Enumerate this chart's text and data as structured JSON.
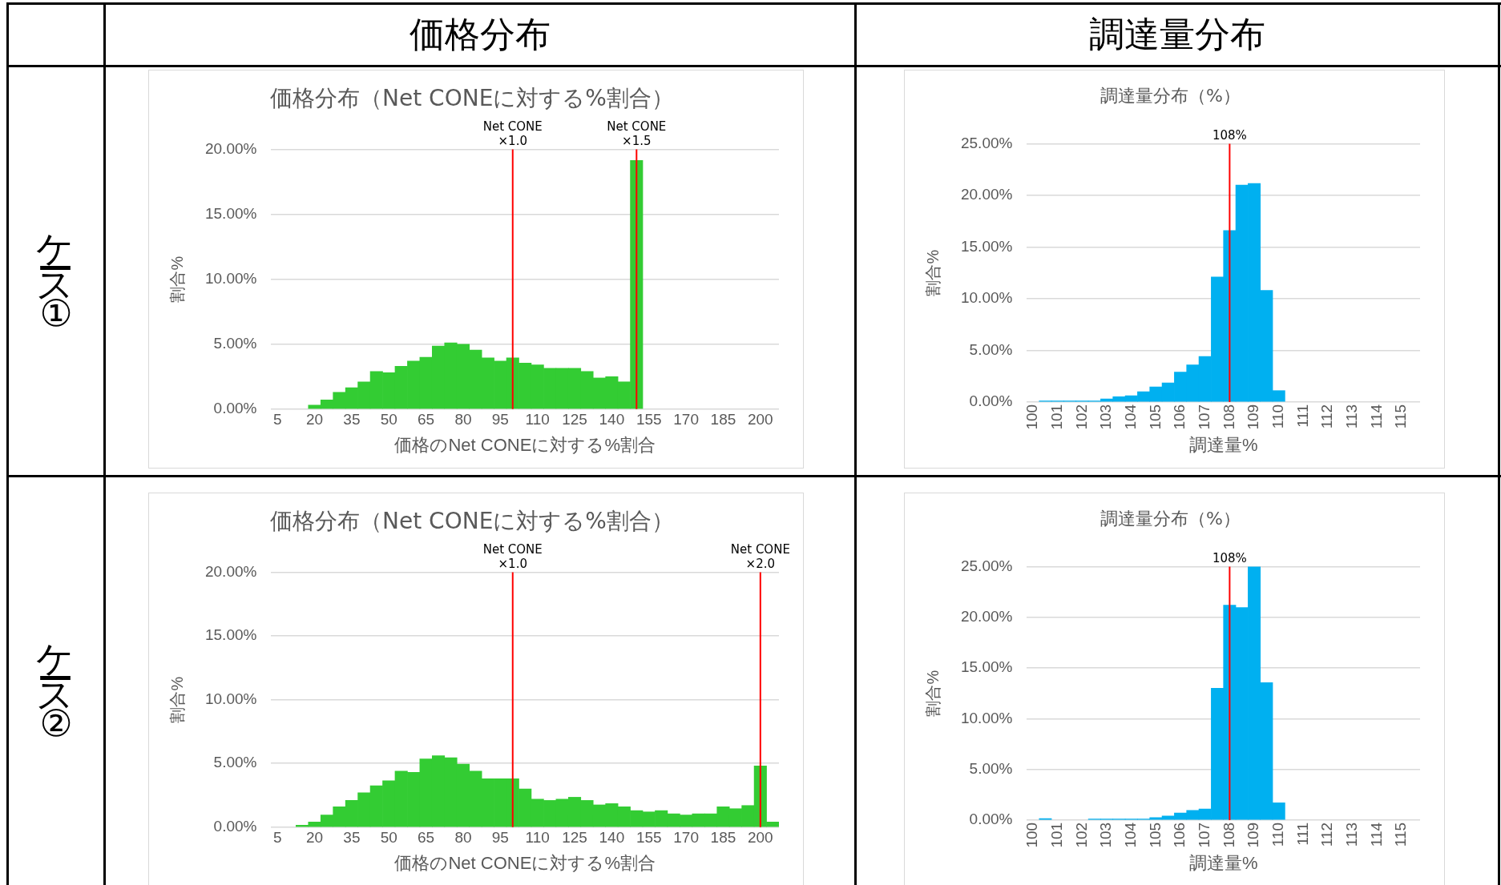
{
  "chart_data": [
    {
      "type": "bar",
      "title": "価格分布（Net CONEに対する%割合）",
      "xlabel": "価格のNet CONEに対する%割合",
      "ylabel": "割合%",
      "annotations": [
        "価格分布",
        "ケース①"
      ],
      "x": [
        20,
        25,
        30,
        35,
        40,
        45,
        50,
        55,
        60,
        65,
        70,
        75,
        80,
        85,
        90,
        95,
        100,
        105,
        110,
        115,
        120,
        125,
        130,
        135,
        140,
        145,
        150
      ],
      "values": [
        0.3,
        0.7,
        1.3,
        1.65,
        2.1,
        2.9,
        2.8,
        3.3,
        3.7,
        4.0,
        4.85,
        5.1,
        5.0,
        4.55,
        3.95,
        3.7,
        3.95,
        3.55,
        3.4,
        3.15,
        3.15,
        3.15,
        2.9,
        2.4,
        2.5,
        2.1,
        19.15
      ],
      "color": "#33cc33",
      "xlim": [
        2.5,
        207.5
      ],
      "xticks": [
        5,
        20,
        35,
        50,
        65,
        80,
        95,
        110,
        125,
        140,
        155,
        170,
        185,
        200
      ],
      "ylim": [
        0,
        20
      ],
      "yticks": [
        {
          "value": 0,
          "label": "0.00%"
        },
        {
          "value": 5,
          "label": "5.00%"
        },
        {
          "value": 10,
          "label": "10.00%"
        },
        {
          "value": 15,
          "label": "15.00%"
        },
        {
          "value": 20,
          "label": "20.00%"
        }
      ],
      "ref_lines": [
        {
          "axis": "x",
          "value": 100,
          "label": "Net CONE\n×1.0",
          "color": "#ff0000"
        },
        {
          "axis": "x",
          "value": 150,
          "label": "Net CONE\n×1.5",
          "color": "#ff0000"
        }
      ],
      "grid": "y"
    },
    {
      "type": "bar",
      "title": "調達量分布（%）",
      "xlabel": "調達量%",
      "ylabel": "割合%",
      "annotations": [
        "調達量分布"
      ],
      "x": [
        100.5,
        101,
        101.5,
        102,
        102.5,
        103,
        103.5,
        104,
        104.5,
        105,
        105.5,
        106,
        106.5,
        107,
        107.5,
        108,
        108.5,
        109,
        109.5,
        110
      ],
      "values": [
        0.1,
        0.1,
        0.1,
        0.1,
        0.1,
        0.3,
        0.5,
        0.6,
        1.0,
        1.45,
        1.85,
        2.9,
        3.6,
        4.4,
        12.1,
        16.6,
        21.0,
        21.15,
        10.8,
        1.1
      ],
      "color": "#00b0f0",
      "xlim": [
        99.75,
        115.75
      ],
      "xticks": [
        100,
        101,
        102,
        103,
        104,
        105,
        106,
        107,
        108,
        109,
        110,
        111,
        112,
        113,
        114,
        115
      ],
      "ylim": [
        0,
        25
      ],
      "yticks": [
        {
          "value": 0,
          "label": "0.00%"
        },
        {
          "value": 5,
          "label": "5.00%"
        },
        {
          "value": 10,
          "label": "10.00%"
        },
        {
          "value": 15,
          "label": "15.00%"
        },
        {
          "value": 20,
          "label": "20.00%"
        },
        {
          "value": 25,
          "label": "25.00%"
        }
      ],
      "ref_lines": [
        {
          "axis": "x",
          "value": 108,
          "label": "108%",
          "color": "#ff0000"
        }
      ],
      "grid": "y"
    },
    {
      "type": "bar",
      "title": "価格分布（Net CONEに対する%割合）",
      "xlabel": "価格のNet CONEに対する%割合",
      "ylabel": "割合%",
      "annotations": [
        "ケース②"
      ],
      "x": [
        15,
        20,
        25,
        30,
        35,
        40,
        45,
        50,
        55,
        60,
        65,
        70,
        75,
        80,
        85,
        90,
        95,
        100,
        105,
        110,
        115,
        120,
        125,
        130,
        135,
        140,
        145,
        150,
        155,
        160,
        165,
        170,
        175,
        180,
        185,
        190,
        195,
        200,
        205
      ],
      "values": [
        0.15,
        0.4,
        0.95,
        1.6,
        2.1,
        2.7,
        3.25,
        3.65,
        4.4,
        4.3,
        5.35,
        5.6,
        5.45,
        4.95,
        4.4,
        3.8,
        3.8,
        3.8,
        3.0,
        2.2,
        2.1,
        2.2,
        2.35,
        2.1,
        1.75,
        1.85,
        1.6,
        1.3,
        1.2,
        1.3,
        1.05,
        0.95,
        1.05,
        1.05,
        1.6,
        1.45,
        1.7,
        4.8,
        0.4
      ],
      "color": "#33cc33",
      "xlim": [
        2.5,
        207.5
      ],
      "xticks": [
        5,
        20,
        35,
        50,
        65,
        80,
        95,
        110,
        125,
        140,
        155,
        170,
        185,
        200
      ],
      "ylim": [
        0,
        20
      ],
      "yticks": [
        {
          "value": 0,
          "label": "0.00%"
        },
        {
          "value": 5,
          "label": "5.00%"
        },
        {
          "value": 10,
          "label": "10.00%"
        },
        {
          "value": 15,
          "label": "15.00%"
        },
        {
          "value": 20,
          "label": "20.00%"
        }
      ],
      "ref_lines": [
        {
          "axis": "x",
          "value": 100,
          "label": "Net CONE\n×1.0",
          "color": "#ff0000"
        },
        {
          "axis": "x",
          "value": 200,
          "label": "Net CONE\n×2.0",
          "color": "#ff0000"
        }
      ],
      "grid": "y"
    },
    {
      "type": "bar",
      "title": "調達量分布（%）",
      "xlabel": "調達量%",
      "ylabel": "割合%",
      "x": [
        100.5,
        102.5,
        103,
        103.5,
        104,
        104.5,
        105,
        105.5,
        106,
        106.5,
        107,
        107.5,
        108,
        108.5,
        109,
        109.5,
        110
      ],
      "values": [
        0.15,
        0.1,
        0.1,
        0.1,
        0.1,
        0.1,
        0.25,
        0.4,
        0.7,
        0.95,
        1.1,
        13.0,
        21.2,
        20.95,
        25.0,
        13.55,
        1.7
      ],
      "color": "#00b0f0",
      "xlim": [
        99.75,
        115.75
      ],
      "xticks": [
        100,
        101,
        102,
        103,
        104,
        105,
        106,
        107,
        108,
        109,
        110,
        111,
        112,
        113,
        114,
        115
      ],
      "ylim": [
        0,
        25
      ],
      "yticks": [
        {
          "value": 0,
          "label": "0.00%"
        },
        {
          "value": 5,
          "label": "5.00%"
        },
        {
          "value": 10,
          "label": "10.00%"
        },
        {
          "value": 15,
          "label": "15.00%"
        },
        {
          "value": 20,
          "label": "20.00%"
        },
        {
          "value": 25,
          "label": "25.00%"
        }
      ],
      "ref_lines": [
        {
          "axis": "x",
          "value": 108,
          "label": "108%",
          "color": "#ff0000"
        }
      ],
      "grid": "y"
    }
  ]
}
